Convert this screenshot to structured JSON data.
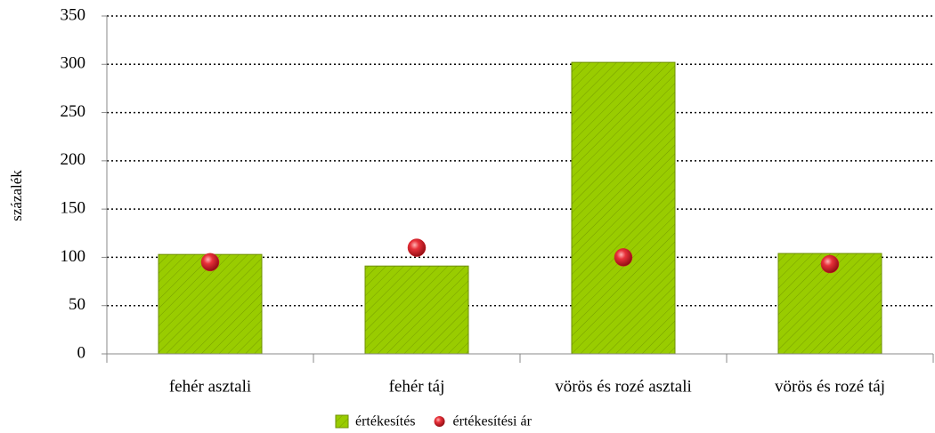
{
  "chart_data": {
    "type": "bar",
    "y_label": "százalék",
    "categories": [
      "fehér asztali",
      "fehér táj",
      "vörös és rozé asztali",
      "vörös és rozé táj"
    ],
    "series": [
      {
        "name": "értékesítés",
        "color": "#99cc00",
        "mark": "bar",
        "values": [
          103,
          91,
          302,
          104
        ]
      },
      {
        "name": "értékesítési ár",
        "color": "#d9222a",
        "mark": "point",
        "values": [
          95,
          110,
          100,
          93
        ]
      }
    ],
    "ylim": [
      0,
      350
    ],
    "yticks": [
      0,
      50,
      100,
      150,
      200,
      250,
      300,
      350
    ],
    "grid": true
  }
}
